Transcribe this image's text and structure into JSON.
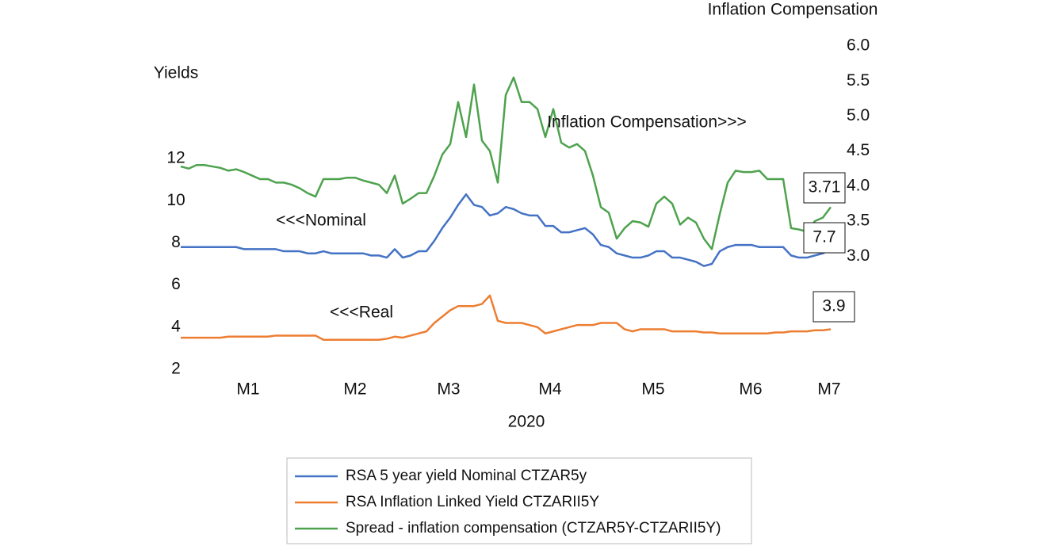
{
  "chart_data": {
    "type": "line",
    "y_label": "Yields",
    "y2_label": "Inflation Compensation",
    "x_label": "2020",
    "x": [
      0,
      2,
      4,
      6,
      8,
      10,
      12,
      14,
      16,
      18,
      20,
      22,
      24,
      26,
      28,
      30,
      32,
      34,
      36,
      38,
      40,
      42,
      44,
      46,
      48,
      50,
      52,
      54,
      56,
      58,
      60,
      62,
      64,
      66,
      68,
      70,
      72,
      74,
      76,
      78,
      80,
      82,
      84,
      86,
      88,
      90,
      92,
      94,
      96,
      98,
      100,
      102,
      104,
      106,
      108,
      110,
      112,
      114,
      116,
      118,
      120,
      122,
      124,
      126,
      128,
      130,
      132,
      134,
      136,
      138,
      140,
      142,
      144,
      146,
      148,
      150,
      152,
      154,
      156,
      158,
      160,
      162,
      164
    ],
    "xlim": [
      0,
      166
    ],
    "xticks": [
      {
        "value": 17,
        "label": "M1"
      },
      {
        "value": 44,
        "label": "M2"
      },
      {
        "value": 67.6,
        "label": "M3"
      },
      {
        "value": 93.2,
        "label": "M4"
      },
      {
        "value": 119.2,
        "label": "M5"
      },
      {
        "value": 143.8,
        "label": "M6"
      },
      {
        "value": 163.6,
        "label": "M7"
      }
    ],
    "ylim": [
      2,
      17.34
    ],
    "yticks": [
      2,
      4,
      6,
      8,
      10,
      12
    ],
    "y2lim": [
      1.385,
      6.0
    ],
    "y2ticks": [
      {
        "value": 3,
        "label": "3.0"
      },
      {
        "value": 3.5,
        "label": "3.5"
      },
      {
        "value": 4,
        "label": "4.0"
      },
      {
        "value": 4.5,
        "label": "4.5"
      },
      {
        "value": 5,
        "label": "5.0"
      },
      {
        "value": 5.5,
        "label": "5.5"
      },
      {
        "value": 6,
        "label": "6.0"
      }
    ],
    "series": [
      {
        "name": "RSA 5 year yield Nominal CTZAR5y",
        "color": "#4472c4",
        "values": [
          7.8,
          7.8,
          7.8,
          7.8,
          7.8,
          7.8,
          7.8,
          7.8,
          7.7,
          7.7,
          7.7,
          7.7,
          7.7,
          7.6,
          7.6,
          7.6,
          7.5,
          7.5,
          7.6,
          7.5,
          7.5,
          7.5,
          7.5,
          7.5,
          7.4,
          7.4,
          7.3,
          7.7,
          7.3,
          7.4,
          7.6,
          7.6,
          8.1,
          8.7,
          9.2,
          9.8,
          10.3,
          9.8,
          9.7,
          9.3,
          9.4,
          9.7,
          9.6,
          9.4,
          9.3,
          9.3,
          8.8,
          8.8,
          8.5,
          8.5,
          8.6,
          8.7,
          8.4,
          7.9,
          7.8,
          7.5,
          7.4,
          7.3,
          7.3,
          7.4,
          7.6,
          7.6,
          7.3,
          7.3,
          7.2,
          7.1,
          6.9,
          7.0,
          7.6,
          7.8,
          7.9,
          7.9,
          7.9,
          7.8,
          7.8,
          7.8,
          7.8,
          7.4,
          7.3,
          7.3,
          7.4,
          7.5,
          7.7
        ]
      },
      {
        "name": "RSA Inflation Linked Yield CTZARII5Y",
        "color": "#ed7d31",
        "values": [
          3.5,
          3.5,
          3.5,
          3.5,
          3.5,
          3.5,
          3.55,
          3.55,
          3.55,
          3.55,
          3.55,
          3.55,
          3.6,
          3.6,
          3.6,
          3.6,
          3.6,
          3.6,
          3.4,
          3.4,
          3.4,
          3.4,
          3.4,
          3.4,
          3.4,
          3.4,
          3.45,
          3.55,
          3.5,
          3.6,
          3.7,
          3.8,
          4.2,
          4.5,
          4.8,
          5.0,
          5.0,
          5.0,
          5.1,
          5.5,
          4.3,
          4.2,
          4.2,
          4.2,
          4.1,
          4.0,
          3.7,
          3.8,
          3.9,
          4.0,
          4.1,
          4.1,
          4.1,
          4.2,
          4.2,
          4.2,
          3.9,
          3.8,
          3.9,
          3.9,
          3.9,
          3.9,
          3.8,
          3.8,
          3.8,
          3.8,
          3.75,
          3.75,
          3.7,
          3.7,
          3.7,
          3.7,
          3.7,
          3.7,
          3.7,
          3.75,
          3.75,
          3.8,
          3.8,
          3.8,
          3.85,
          3.85,
          3.9
        ]
      },
      {
        "name": "Spread - inflation compensation (CTZAR5Y-CTZARII5Y)",
        "color": "#4ea24e",
        "axis": "y2",
        "values": [
          4.28,
          4.25,
          4.3,
          4.3,
          4.28,
          4.26,
          4.22,
          4.24,
          4.2,
          4.15,
          4.1,
          4.1,
          4.05,
          4.05,
          4.02,
          3.97,
          3.9,
          3.85,
          4.1,
          4.1,
          4.1,
          4.12,
          4.12,
          4.08,
          4.05,
          4.02,
          3.9,
          4.15,
          3.75,
          3.82,
          3.9,
          3.9,
          4.15,
          4.45,
          4.6,
          5.2,
          4.7,
          5.45,
          4.65,
          4.5,
          4.05,
          5.3,
          5.55,
          5.2,
          5.2,
          5.1,
          4.7,
          5.1,
          4.62,
          4.55,
          4.6,
          4.5,
          4.15,
          3.7,
          3.62,
          3.25,
          3.4,
          3.5,
          3.48,
          3.42,
          3.75,
          3.85,
          3.75,
          3.45,
          3.55,
          3.48,
          3.25,
          3.1,
          3.6,
          4.05,
          4.22,
          4.2,
          4.2,
          4.22,
          4.1,
          4.1,
          4.1,
          3.4,
          3.38,
          3.35,
          3.5,
          3.55,
          3.7
        ]
      }
    ],
    "annotations": [
      "Inflation Compensation>>>",
      "<<<Nominal",
      "<<<Real",
      "3.71",
      "7.7",
      "3.9"
    ]
  }
}
